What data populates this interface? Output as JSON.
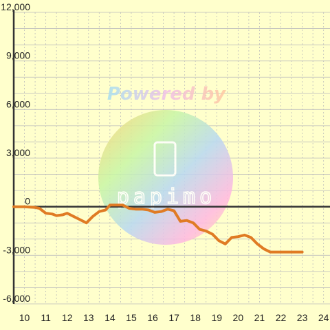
{
  "chart_data": {
    "type": "line",
    "x": [
      9.5,
      10.0,
      10.5,
      10.7,
      11.0,
      11.3,
      11.5,
      11.8,
      12.0,
      12.3,
      12.6,
      12.9,
      13.2,
      13.5,
      13.8,
      14.0,
      14.3,
      14.6,
      14.9,
      15.2,
      15.5,
      15.8,
      16.1,
      16.4,
      16.7,
      17.0,
      17.3,
      17.6,
      17.9,
      18.2,
      18.5,
      18.8,
      19.1,
      19.4,
      19.7,
      20.0,
      20.3,
      20.6,
      20.9,
      21.2,
      21.5,
      21.8,
      22.1,
      22.4,
      22.7,
      23.0
    ],
    "series": [
      {
        "values": [
          0,
          0,
          -50,
          -100,
          -400,
          -450,
          -550,
          -500,
          -400,
          -600,
          -800,
          -1000,
          -600,
          -300,
          -200,
          100,
          100,
          100,
          -100,
          -150,
          -150,
          -200,
          -350,
          -300,
          -150,
          -250,
          -900,
          -850,
          -1000,
          -1400,
          -1500,
          -1700,
          -2100,
          -2300,
          -1900,
          -1850,
          -1750,
          -1900,
          -2300,
          -2600,
          -2800,
          -2800,
          -2800,
          -2800,
          -2800,
          -2800
        ],
        "color": "#e07b24"
      }
    ],
    "xlim": [
      9.5,
      24.3
    ],
    "ylim": [
      -6000,
      12000
    ],
    "x_ticks": [
      "10",
      "11",
      "12",
      "13",
      "14",
      "15",
      "16",
      "17",
      "18",
      "19",
      "20",
      "21",
      "22",
      "23",
      "24"
    ],
    "y_ticks": [
      "12,000",
      "9,000",
      "6,000",
      "3,000",
      "0",
      "-3,000",
      "-6,000"
    ],
    "y_tick_values": [
      12000,
      9000,
      6000,
      3000,
      0,
      -3000,
      -6000
    ],
    "grid": true,
    "title": "",
    "xlabel": "",
    "ylabel": "",
    "background": "#ffffcc",
    "gridline_color": "#bbbbbb",
    "axis_color": "#333333"
  },
  "watermark": {
    "text": "Powered by",
    "brand": "papimo"
  }
}
